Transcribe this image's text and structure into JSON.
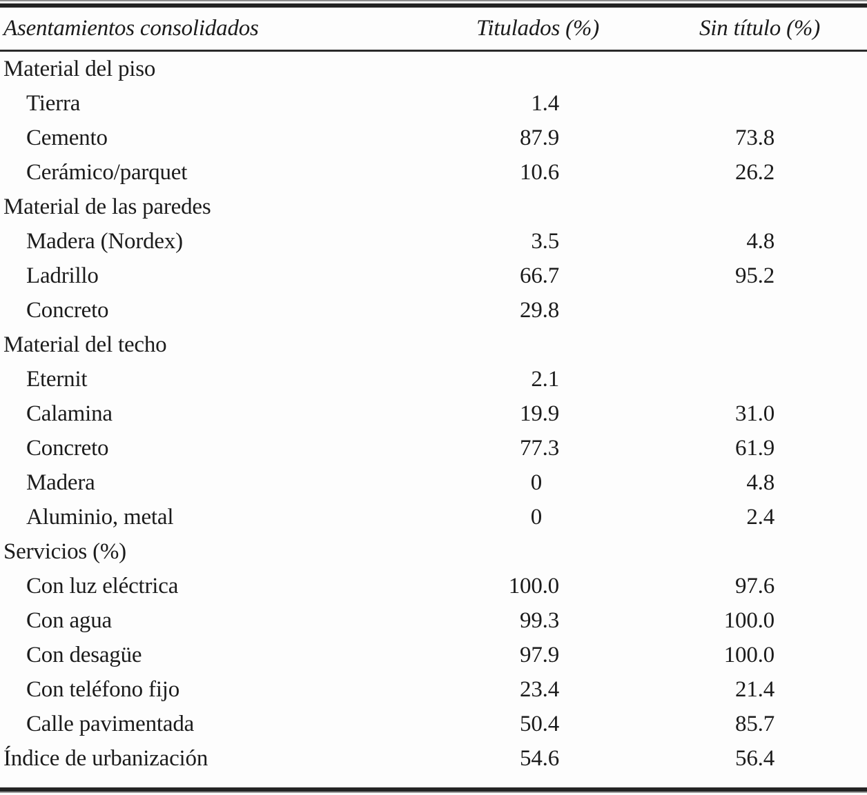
{
  "page": {
    "background": "#fdfdfd",
    "text_color": "#1b1b1b",
    "rule_color": "#232323"
  },
  "table": {
    "header": {
      "label": "Asentamientos consolidados",
      "titulados": "Titulados (%)",
      "sin_titulo": "Sin título (%)"
    },
    "rows": [
      {
        "label": "Material del piso",
        "type": "group",
        "titulados": "",
        "sin_titulo": ""
      },
      {
        "label": "Tierra",
        "type": "item",
        "titulados": "1.4",
        "sin_titulo": ""
      },
      {
        "label": "Cemento",
        "type": "item",
        "titulados": "87.9",
        "sin_titulo": "73.8"
      },
      {
        "label": "Cerámico/parquet",
        "type": "item",
        "titulados": "10.6",
        "sin_titulo": "26.2"
      },
      {
        "label": "Material de las paredes",
        "type": "group",
        "titulados": "",
        "sin_titulo": ""
      },
      {
        "label": "Madera (Nordex)",
        "type": "item",
        "titulados": "3.5",
        "sin_titulo": "4.8"
      },
      {
        "label": "Ladrillo",
        "type": "item",
        "titulados": "66.7",
        "sin_titulo": "95.2"
      },
      {
        "label": "Concreto",
        "type": "item",
        "titulados": "29.8",
        "sin_titulo": ""
      },
      {
        "label": "Material del techo",
        "type": "group",
        "titulados": "",
        "sin_titulo": ""
      },
      {
        "label": "Eternit",
        "type": "item",
        "titulados": "2.1",
        "sin_titulo": ""
      },
      {
        "label": "Calamina",
        "type": "item",
        "titulados": "19.9",
        "sin_titulo": "31.0"
      },
      {
        "label": "Concreto",
        "type": "item",
        "titulados": "77.3",
        "sin_titulo": "61.9"
      },
      {
        "label": "Madera",
        "type": "item",
        "titulados": "0",
        "sin_titulo": "4.8"
      },
      {
        "label": "Aluminio, metal",
        "type": "item",
        "titulados": "0",
        "sin_titulo": "2.4"
      },
      {
        "label": "Servicios (%)",
        "type": "group",
        "titulados": "",
        "sin_titulo": ""
      },
      {
        "label": "Con luz eléctrica",
        "type": "item",
        "titulados": "100.0",
        "sin_titulo": "97.6"
      },
      {
        "label": "Con agua",
        "type": "item",
        "titulados": "99.3",
        "sin_titulo": "100.0"
      },
      {
        "label": "Con desagüe",
        "type": "item",
        "titulados": "97.9",
        "sin_titulo": "100.0"
      },
      {
        "label": "Con teléfono fijo",
        "type": "item",
        "titulados": "23.4",
        "sin_titulo": "21.4"
      },
      {
        "label": "Calle pavimentada",
        "type": "item",
        "titulados": "50.4",
        "sin_titulo": "85.7"
      },
      {
        "label": "Índice de urbanización",
        "type": "summary",
        "titulados": "54.6",
        "sin_titulo": "56.4"
      }
    ]
  },
  "chart_data": {
    "type": "table",
    "title": "Asentamientos consolidados",
    "columns": [
      "Asentamientos consolidados",
      "Titulados (%)",
      "Sin título (%)"
    ],
    "sections": [
      {
        "name": "Material del piso",
        "rows": [
          [
            "Tierra",
            1.4,
            null
          ],
          [
            "Cemento",
            87.9,
            73.8
          ],
          [
            "Cerámico/parquet",
            10.6,
            26.2
          ]
        ]
      },
      {
        "name": "Material de las paredes",
        "rows": [
          [
            "Madera (Nordex)",
            3.5,
            4.8
          ],
          [
            "Ladrillo",
            66.7,
            95.2
          ],
          [
            "Concreto",
            29.8,
            null
          ]
        ]
      },
      {
        "name": "Material del techo",
        "rows": [
          [
            "Eternit",
            2.1,
            null
          ],
          [
            "Calamina",
            19.9,
            31.0
          ],
          [
            "Concreto",
            77.3,
            61.9
          ],
          [
            "Madera",
            0,
            4.8
          ],
          [
            "Aluminio, metal",
            0,
            2.4
          ]
        ]
      },
      {
        "name": "Servicios (%)",
        "rows": [
          [
            "Con luz eléctrica",
            100.0,
            97.6
          ],
          [
            "Con agua",
            99.3,
            100.0
          ],
          [
            "Con desagüe",
            97.9,
            100.0
          ],
          [
            "Con teléfono fijo",
            23.4,
            21.4
          ],
          [
            "Calle pavimentada",
            50.4,
            85.7
          ]
        ]
      }
    ],
    "footer_row": [
      "Índice de urbanización",
      54.6,
      56.4
    ]
  }
}
